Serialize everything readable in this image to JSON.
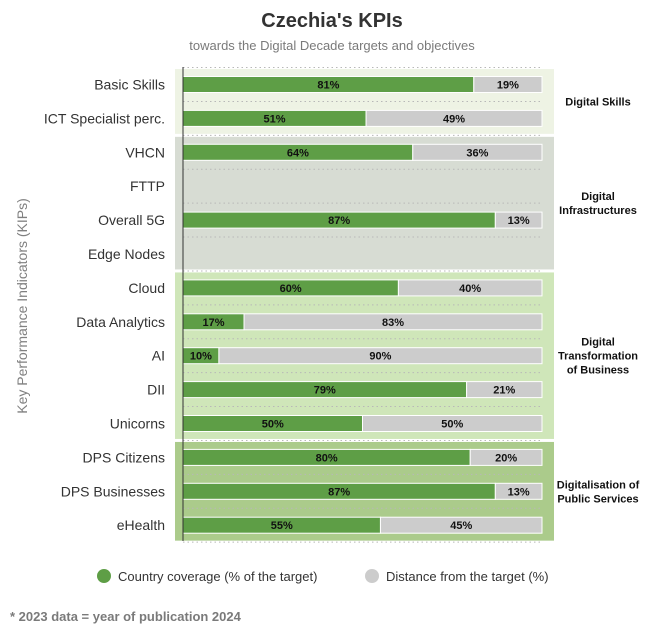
{
  "chart_data": {
    "type": "bar",
    "orientation": "horizontal",
    "stacked": true,
    "title": "Czechia's KPIs",
    "subtitle": "towards the Digital Decade targets and objectives",
    "ylabel": "Key Performance Indicators (KIPs)",
    "xlim": [
      0,
      100
    ],
    "grid": true,
    "legend_position": "bottom",
    "categories": [
      "Basic Skills",
      "ICT Specialist perc.",
      "VHCN",
      "FTTP",
      "Overall 5G",
      "Edge Nodes",
      "Cloud",
      "Data Analytics",
      "AI",
      "DII",
      "Unicorns",
      "DPS Citizens",
      "DPS Businesses",
      "eHealth"
    ],
    "series": [
      {
        "name": "Country coverage (% of the target)",
        "color": "#5e9e46",
        "values": [
          81,
          51,
          64,
          null,
          87,
          null,
          60,
          17,
          10,
          79,
          50,
          80,
          87,
          55
        ]
      },
      {
        "name": "Distance from the target (%)",
        "color": "#cccccc",
        "values": [
          19,
          49,
          36,
          null,
          13,
          null,
          40,
          83,
          90,
          21,
          50,
          20,
          13,
          45
        ]
      }
    ],
    "groups": [
      {
        "lines": [
          "Digital Skills"
        ],
        "categories": [
          "Basic Skills",
          "ICT Specialist perc."
        ],
        "background": "#eef3e4"
      },
      {
        "lines": [
          "Digital",
          "Infrastructures"
        ],
        "categories": [
          "VHCN",
          "FTTP",
          "Overall 5G",
          "Edge Nodes"
        ],
        "background": "#d7dcd3"
      },
      {
        "lines": [
          "Digital",
          "Transformation",
          "of Business"
        ],
        "categories": [
          "Cloud",
          "Data Analytics",
          "AI",
          "DII",
          "Unicorns"
        ],
        "background": "#cfe6b9"
      },
      {
        "lines": [
          "Digitalisation of",
          "Public Services"
        ],
        "categories": [
          "DPS Citizens",
          "DPS Businesses",
          "eHealth"
        ],
        "background": "#abcb8b"
      }
    ],
    "footnote": "* 2023 data = year of publication 2024"
  }
}
